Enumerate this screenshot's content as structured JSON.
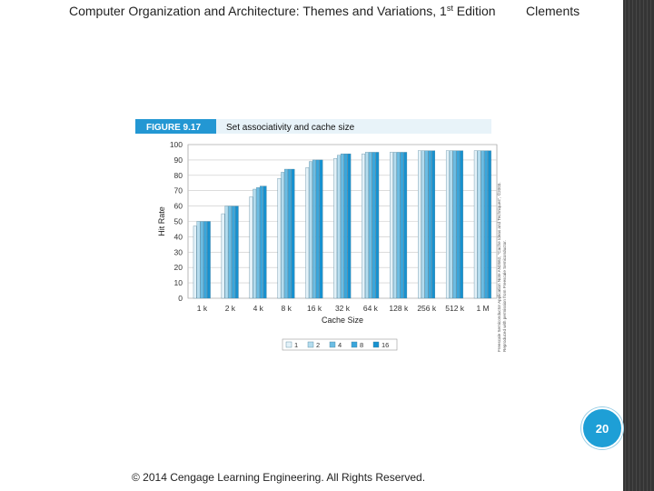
{
  "header": {
    "title_prefix": "Computer Organization and Architecture: Themes and Variations, 1",
    "title_sup": "st",
    "title_suffix": " Edition",
    "author": "Clements"
  },
  "figure": {
    "label": "FIGURE 9.17",
    "caption": "Set associativity and cache size",
    "credit_lines": [
      "Freescale Semiconductor Application Note AN2662, \"Cache Ideas and Techniques\", ©2003.",
      "Reproduced with permission from Freescale Semiconductor."
    ]
  },
  "chart_data": {
    "type": "bar",
    "title": "",
    "xlabel": "Cache Size",
    "ylabel": "Hit Rate",
    "ylim": [
      0,
      100
    ],
    "yticks": [
      0,
      10,
      20,
      30,
      40,
      50,
      60,
      70,
      80,
      90,
      100
    ],
    "grid": true,
    "legend_position": "bottom",
    "categories": [
      "1 k",
      "2 k",
      "4 k",
      "8 k",
      "16 k",
      "32 k",
      "64 k",
      "128 k",
      "256 k",
      "512 k",
      "1 M"
    ],
    "series": [
      {
        "name": "1",
        "color": "#e3f1f8",
        "values": [
          47,
          55,
          66,
          78,
          85,
          91,
          94,
          95,
          96,
          96,
          96
        ]
      },
      {
        "name": "2",
        "color": "#b4dcee",
        "values": [
          50,
          60,
          71,
          82,
          89,
          93,
          95,
          95,
          96,
          96,
          96
        ]
      },
      {
        "name": "4",
        "color": "#6cbde3",
        "values": [
          50,
          60,
          72,
          84,
          90,
          94,
          95,
          95,
          96,
          96,
          96
        ]
      },
      {
        "name": "8",
        "color": "#3aa6db",
        "values": [
          50,
          60,
          73,
          84,
          90,
          94,
          95,
          95,
          96,
          96,
          96
        ]
      },
      {
        "name": "16",
        "color": "#1791cf",
        "values": [
          50,
          60,
          73,
          84,
          90,
          94,
          95,
          95,
          96,
          96,
          96
        ]
      }
    ]
  },
  "page_number": "20",
  "footer": {
    "copyright": "© 2014 Cengage Learning Engineering. All Rights Reserved."
  }
}
